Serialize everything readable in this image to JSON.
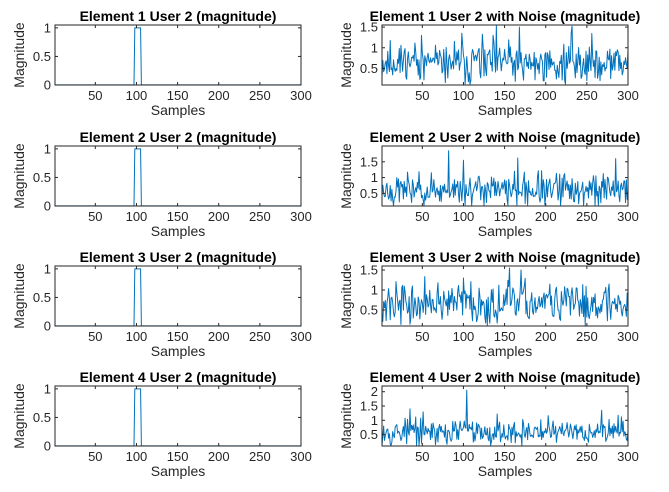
{
  "colors": {
    "series": "#0072bd",
    "axis": "#262626"
  },
  "chart_data": [
    {
      "type": "line",
      "title": "Element 1 User 2 (magnitude)",
      "xlabel": "Samples",
      "ylabel": "Magnitude",
      "xlim": [
        1,
        300
      ],
      "ylim": [
        0,
        1.05
      ],
      "xticks": [
        50,
        100,
        150,
        200,
        250,
        300
      ],
      "yticks": [
        0,
        0.5,
        1
      ],
      "ytick_labels": [
        "0",
        "0.5",
        "1"
      ],
      "grid": false,
      "x": [
        1,
        97,
        98,
        99,
        104,
        105,
        106,
        300
      ],
      "y": [
        0.002,
        0.002,
        1,
        1,
        1,
        1,
        0.002,
        0.002
      ]
    },
    {
      "type": "line",
      "title": "Element 1 User 2 with Noise (magnitude)",
      "xlabel": "Samples",
      "ylabel": "Magnitude",
      "xlim": [
        1,
        300
      ],
      "ylim": [
        0.1,
        1.55
      ],
      "xticks": [
        50,
        100,
        150,
        200,
        250,
        300
      ],
      "yticks": [
        0.5,
        1,
        1.5
      ],
      "ytick_labels": [
        "0.5",
        "1",
        "1.5"
      ],
      "grid": false,
      "noise": {
        "seed": 11,
        "base": 0.62,
        "spread": 0.55,
        "min": 0.12,
        "max": 1.55,
        "peaks": [
          [
            49,
            1.3
          ],
          [
            98,
            1.35
          ],
          [
            168,
            1.5
          ],
          [
            232,
            1.52
          ]
        ]
      }
    },
    {
      "type": "line",
      "title": "Element 2 User 2 (magnitude)",
      "xlabel": "Samples",
      "ylabel": "Magnitude",
      "xlim": [
        1,
        300
      ],
      "ylim": [
        0,
        1.05
      ],
      "xticks": [
        50,
        100,
        150,
        200,
        250,
        300
      ],
      "yticks": [
        0,
        0.5,
        1
      ],
      "ytick_labels": [
        "0",
        "0.5",
        "1"
      ],
      "grid": false,
      "x": [
        1,
        97,
        98,
        99,
        104,
        105,
        106,
        300
      ],
      "y": [
        0.002,
        0.002,
        1,
        1,
        1,
        1,
        0.002,
        0.002
      ]
    },
    {
      "type": "line",
      "title": "Element 2 User 2 with Noise (magnitude)",
      "xlabel": "Samples",
      "ylabel": "Magnitude",
      "xlim": [
        1,
        300
      ],
      "ylim": [
        0.1,
        2.0
      ],
      "xticks": [
        50,
        100,
        150,
        200,
        250,
        300
      ],
      "yticks": [
        0.5,
        1,
        1.5
      ],
      "ytick_labels": [
        "0.5",
        "1",
        "1.5"
      ],
      "grid": false,
      "noise": {
        "seed": 23,
        "base": 0.6,
        "spread": 0.6,
        "min": 0.12,
        "max": 1.95,
        "peaks": [
          [
            82,
            1.85
          ],
          [
            100,
            1.55
          ],
          [
            285,
            1.6
          ]
        ]
      }
    },
    {
      "type": "line",
      "title": "Element 3 User 2 (magnitude)",
      "xlabel": "Samples",
      "ylabel": "Magnitude",
      "xlim": [
        1,
        300
      ],
      "ylim": [
        0,
        1.05
      ],
      "xticks": [
        50,
        100,
        150,
        200,
        250,
        300
      ],
      "yticks": [
        0,
        0.5,
        1
      ],
      "ytick_labels": [
        "0",
        "0.5",
        "1"
      ],
      "grid": false,
      "x": [
        1,
        97,
        98,
        99,
        104,
        105,
        106,
        300
      ],
      "y": [
        0.002,
        0.002,
        1,
        1,
        1,
        1,
        0.002,
        0.002
      ]
    },
    {
      "type": "line",
      "title": "Element 3 User 2 with Noise (magnitude)",
      "xlabel": "Samples",
      "ylabel": "Magnitude",
      "xlim": [
        1,
        300
      ],
      "ylim": [
        0.1,
        1.6
      ],
      "xticks": [
        50,
        100,
        150,
        200,
        250,
        300
      ],
      "yticks": [
        0.5,
        1,
        1.5
      ],
      "ytick_labels": [
        "0.5",
        "1",
        "1.5"
      ],
      "grid": false,
      "noise": {
        "seed": 37,
        "base": 0.65,
        "spread": 0.55,
        "min": 0.12,
        "max": 1.58,
        "peaks": [
          [
            100,
            1.3
          ],
          [
            156,
            1.55
          ],
          [
            170,
            1.5
          ]
        ]
      }
    },
    {
      "type": "line",
      "title": "Element 4 User 2 (magnitude)",
      "xlabel": "Samples",
      "ylabel": "Magnitude",
      "xlim": [
        1,
        300
      ],
      "ylim": [
        0,
        1.05
      ],
      "xticks": [
        50,
        100,
        150,
        200,
        250,
        300
      ],
      "yticks": [
        0,
        0.5,
        1
      ],
      "ytick_labels": [
        "0",
        "0.5",
        "1"
      ],
      "grid": false,
      "x": [
        1,
        97,
        98,
        99,
        104,
        105,
        106,
        300
      ],
      "y": [
        0.002,
        0.002,
        1,
        1,
        1,
        1,
        0.002,
        0.002
      ]
    },
    {
      "type": "line",
      "title": "Element 4 User 2 with Noise (magnitude)",
      "xlabel": "Samples",
      "ylabel": "Magnitude",
      "xlim": [
        1,
        300
      ],
      "ylim": [
        0.1,
        2.2
      ],
      "xticks": [
        50,
        100,
        150,
        200,
        250,
        300
      ],
      "yticks": [
        0.5,
        1,
        1.5,
        2
      ],
      "ytick_labels": [
        "0.5",
        "1",
        "1.5",
        "2"
      ],
      "grid": false,
      "noise": {
        "seed": 53,
        "base": 0.6,
        "spread": 0.5,
        "min": 0.12,
        "max": 2.1,
        "peaks": [
          [
            104,
            2.05
          ],
          [
            35,
            1.4
          ],
          [
            268,
            1.35
          ]
        ]
      }
    }
  ]
}
